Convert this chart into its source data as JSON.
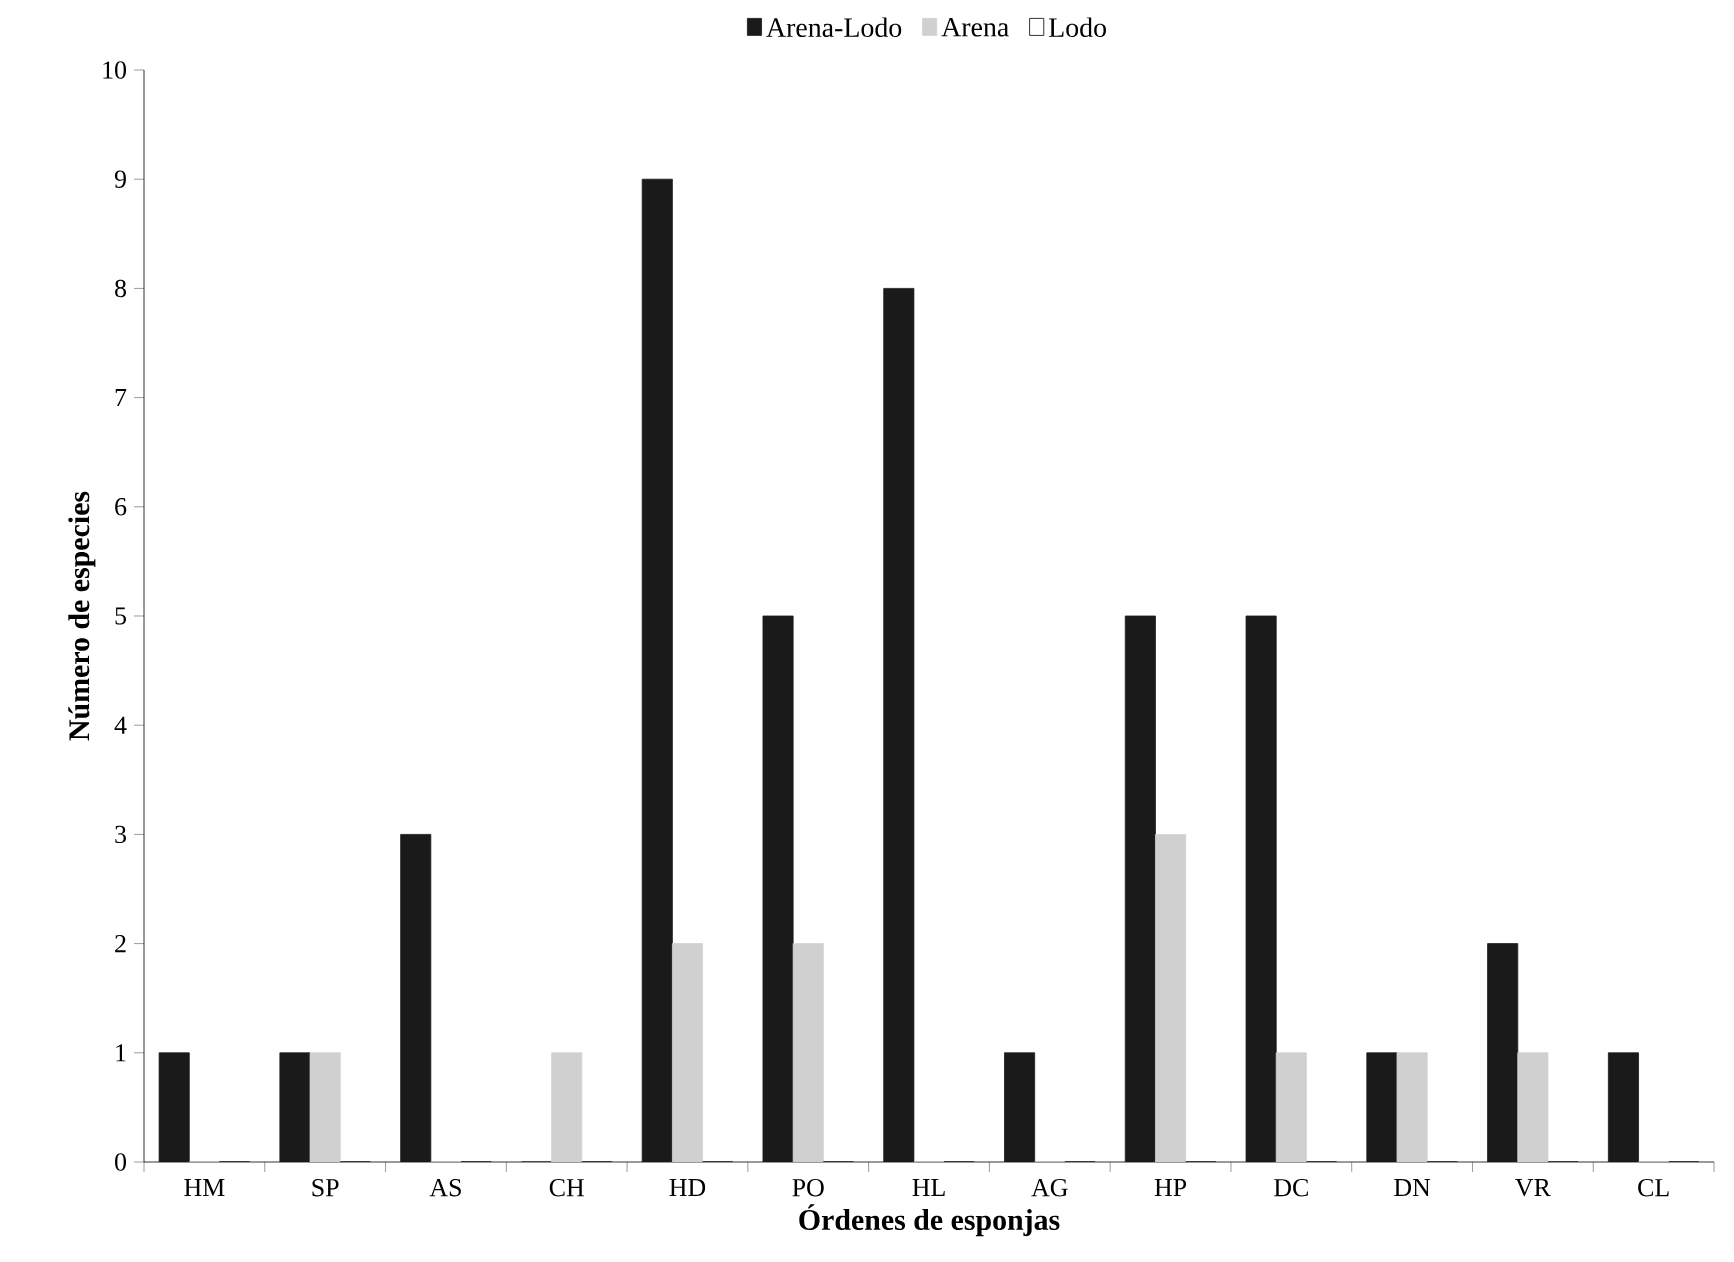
{
  "chart_data": {
    "type": "bar",
    "xlabel": "Órdenes de esponjas",
    "ylabel": "Número de especies",
    "categories": [
      "HM",
      "SP",
      "AS",
      "CH",
      "HD",
      "PO",
      "HL",
      "AG",
      "HP",
      "DC",
      "DN",
      "VR",
      "CL"
    ],
    "series": [
      {
        "name": "Arena-Lodo",
        "color": "#1a1a1a",
        "values": [
          1,
          1,
          3,
          0,
          9,
          5,
          8,
          1,
          5,
          5,
          1,
          2,
          1
        ]
      },
      {
        "name": "Arena",
        "color": "#d0d0d0",
        "values": [
          0,
          1,
          0,
          1,
          2,
          2,
          0,
          0,
          3,
          1,
          1,
          1,
          0
        ]
      },
      {
        "name": "Lodo",
        "color": "#ffffff",
        "values": [
          0,
          0,
          0,
          0,
          0,
          0,
          0,
          0,
          0,
          0,
          0,
          0,
          0
        ]
      }
    ],
    "ylim": [
      0,
      10
    ],
    "yticks": [
      0,
      1,
      2,
      3,
      4,
      5,
      6,
      7,
      8,
      9,
      10
    ],
    "legend": "top"
  }
}
